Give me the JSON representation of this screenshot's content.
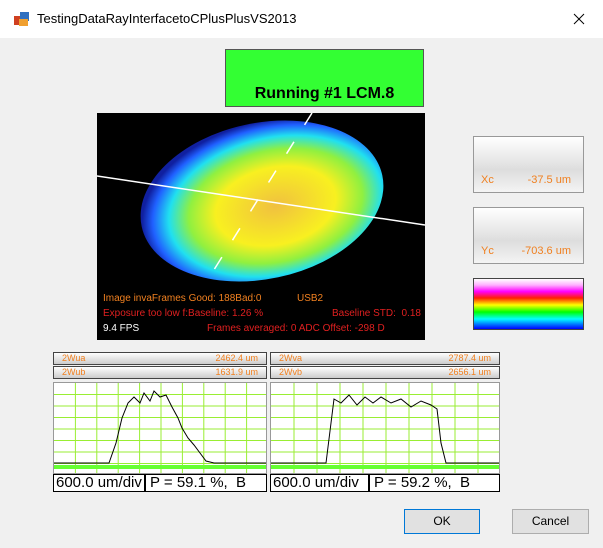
{
  "window": {
    "title": "TestingDataRayInterfacetoCPlusPlusVS2013"
  },
  "status": "Running #1 LCM.8",
  "overlay": {
    "line1": "Image invaFrames Good: 188Bad:0",
    "usb": "USB2",
    "exposure": "Exposure too low f:Baseline: 1.26 %",
    "baseline_std": "Baseline STD:  0.18",
    "fps": "9.4 FPS",
    "frames": "Frames averaged: 0 ADC Offset: -298 D"
  },
  "centroid": [
    {
      "label": "Xc",
      "value": "-37.5 um"
    },
    {
      "label": "Yc",
      "value": "-703.6 um"
    }
  ],
  "profiles": [
    {
      "rows": [
        {
          "label": "2Wua",
          "value": "2462.4 um"
        },
        {
          "label": "2Wub",
          "value": "1631.9 um"
        }
      ],
      "scale": "600.0 um/div",
      "power": "P = 59.1 %,  B"
    },
    {
      "rows": [
        {
          "label": "2Wva",
          "value": "2787.4 um"
        },
        {
          "label": "2Wvb",
          "value": "2656.1 um"
        }
      ],
      "scale": "600.0 um/div",
      "power": "P = 59.2 %,  B"
    }
  ],
  "buttons": [
    "OK",
    "Cancel"
  ]
}
